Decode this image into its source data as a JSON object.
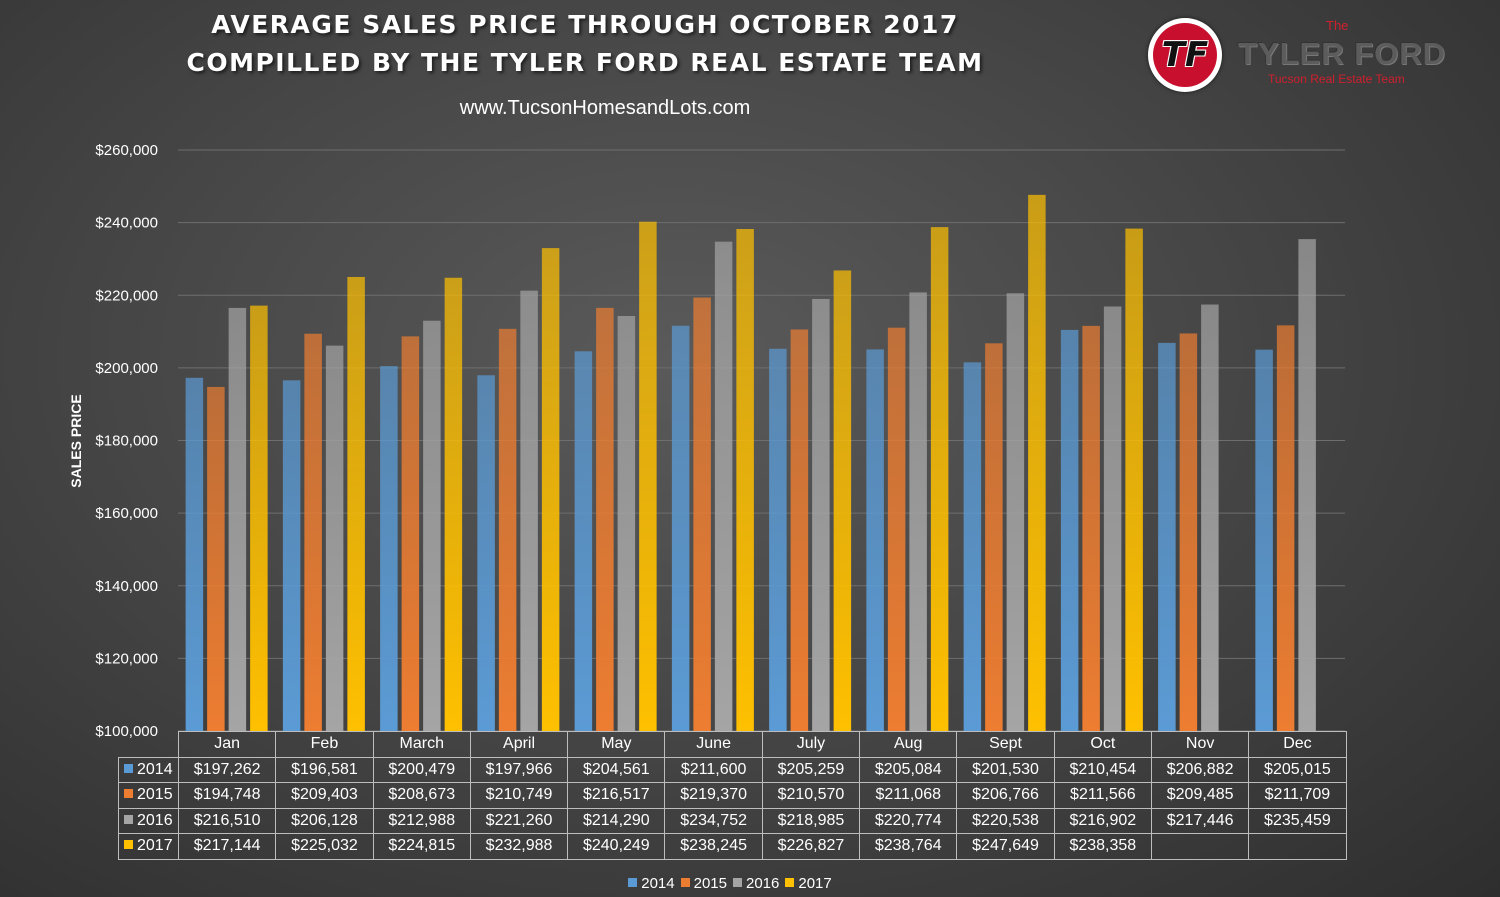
{
  "header": {
    "title_line1": "AVERAGE SALES PRICE THROUGH OCTOBER 2017",
    "title_line2": "COMPILLED BY THE TYLER FORD REAL ESTATE TEAM",
    "website": "www.TucsonHomesandLots.com"
  },
  "logo": {
    "letters": "TF",
    "the": "The",
    "name": "TYLER FORD",
    "tagline": "Tucson Real Estate Team"
  },
  "chart_data": {
    "type": "bar",
    "title": "AVERAGE SALES PRICE THROUGH OCTOBER 2017",
    "subtitle": "COMPILLED BY THE TYLER FORD REAL ESTATE TEAM",
    "xlabel": "",
    "ylabel": "SALES PRICE",
    "ylim": [
      100000,
      260000
    ],
    "y_ticks": [
      "$100,000",
      "$120,000",
      "$140,000",
      "$160,000",
      "$180,000",
      "$200,000",
      "$220,000",
      "$240,000",
      "$260,000"
    ],
    "grid": true,
    "legend_position": "bottom",
    "categories": [
      "Jan",
      "Feb",
      "March",
      "April",
      "May",
      "June",
      "July",
      "Aug",
      "Sept",
      "Oct",
      "Nov",
      "Dec"
    ],
    "series": [
      {
        "name": "2014",
        "color": "#5b9bd5",
        "values": [
          197262,
          196581,
          200479,
          197966,
          204561,
          211600,
          205259,
          205084,
          201530,
          210454,
          206882,
          205015
        ],
        "labels": [
          "$197,262",
          "$196,581",
          "$200,479",
          "$197,966",
          "$204,561",
          "$211,600",
          "$205,259",
          "$205,084",
          "$201,530",
          "$210,454",
          "$206,882",
          "$205,015"
        ]
      },
      {
        "name": "2015",
        "color": "#ed7d31",
        "values": [
          194748,
          209403,
          208673,
          210749,
          216517,
          219370,
          210570,
          211068,
          206766,
          211566,
          209485,
          211709
        ],
        "labels": [
          "$194,748",
          "$209,403",
          "$208,673",
          "$210,749",
          "$216,517",
          "$219,370",
          "$210,570",
          "$211,068",
          "$206,766",
          "$211,566",
          "$209,485",
          "$211,709"
        ]
      },
      {
        "name": "2016",
        "color": "#a5a5a5",
        "values": [
          216510,
          206128,
          212988,
          221260,
          214290,
          234752,
          218985,
          220774,
          220538,
          216902,
          217446,
          235459
        ],
        "labels": [
          "$216,510",
          "$206,128",
          "$212,988",
          "$221,260",
          "$214,290",
          "$234,752",
          "$218,985",
          "$220,774",
          "$220,538",
          "$216,902",
          "$217,446",
          "$235,459"
        ]
      },
      {
        "name": "2017",
        "color": "#ffc000",
        "values": [
          217144,
          225032,
          224815,
          232988,
          240249,
          238245,
          226827,
          238764,
          247649,
          238358,
          null,
          null
        ],
        "labels": [
          "$217,144",
          "$225,032",
          "$224,815",
          "$232,988",
          "$240,249",
          "$238,245",
          "$226,827",
          "$238,764",
          "$247,649",
          "$238,358",
          "",
          ""
        ]
      }
    ]
  }
}
